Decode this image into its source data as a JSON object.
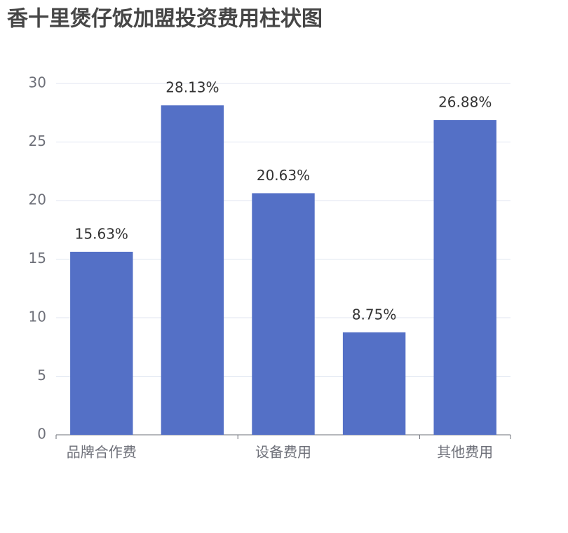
{
  "chart_data": {
    "type": "bar",
    "title": "香十里煲仔饭加盟投资费用柱状图",
    "categories": [
      "品牌合作费",
      null,
      "设备费用",
      null,
      "其他费用"
    ],
    "values": [
      15.63,
      28.13,
      20.63,
      8.75,
      26.88
    ],
    "value_labels": [
      "15.63%",
      "28.13%",
      "20.63%",
      "8.75%",
      "26.88%"
    ],
    "color": "#5470c6",
    "ylim": [
      0,
      30
    ],
    "yticks": [
      0,
      5,
      10,
      15,
      20,
      25,
      30
    ],
    "grid": true
  }
}
